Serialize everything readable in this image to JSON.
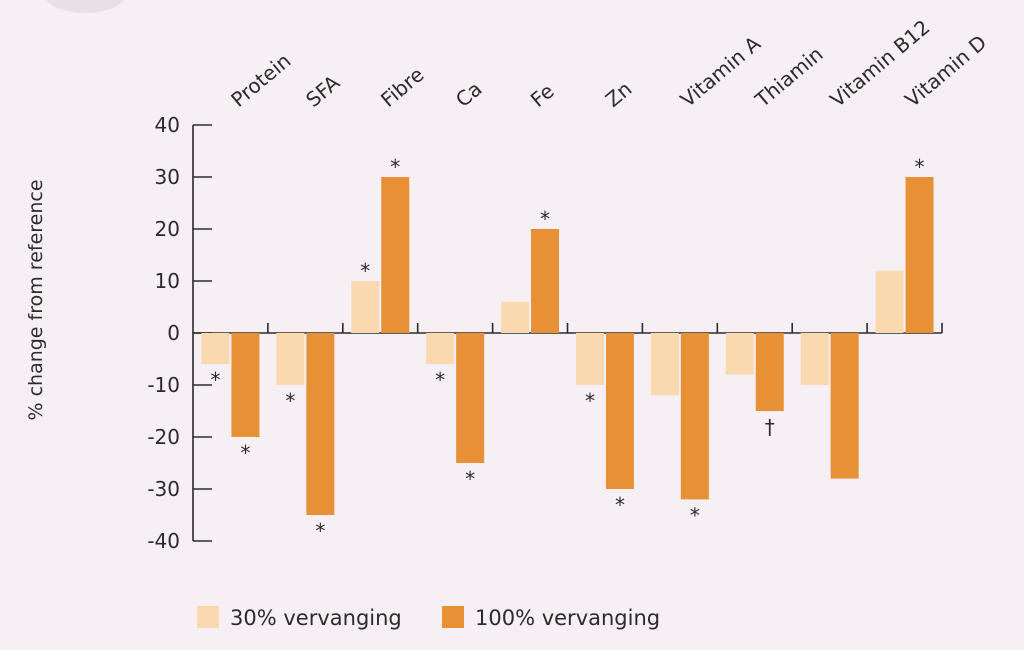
{
  "chart_data": {
    "type": "bar",
    "categories": [
      "Protein",
      "SFA",
      "Fibre",
      "Ca",
      "Fe",
      "Zn",
      "Vitamin A",
      "Thiamin",
      "Vitamin B12",
      "Vitamin D"
    ],
    "series": [
      {
        "name": "30% vervanging",
        "color": "#fad8b0",
        "values": [
          -6,
          -10,
          10,
          -6,
          6,
          -10,
          -12,
          -8,
          -10,
          12
        ],
        "markers": [
          "*",
          "*",
          "*",
          "*",
          "",
          "*",
          "",
          "",
          "",
          ""
        ]
      },
      {
        "name": "100% vervanging",
        "color": "#e89035",
        "values": [
          -20,
          -35,
          30,
          -25,
          20,
          -30,
          -32,
          -15,
          -28,
          30
        ],
        "markers": [
          "*",
          "*",
          "*",
          "*",
          "*",
          "*",
          "*",
          "†",
          "",
          "*"
        ]
      }
    ],
    "ylabel": "% change from reference",
    "xlabel": "",
    "title": "",
    "ylim": [
      -40,
      40
    ],
    "yticks": [
      40,
      30,
      20,
      10,
      0,
      -10,
      -20,
      -30,
      -40
    ],
    "grid": false,
    "legend_position": "bottom"
  }
}
